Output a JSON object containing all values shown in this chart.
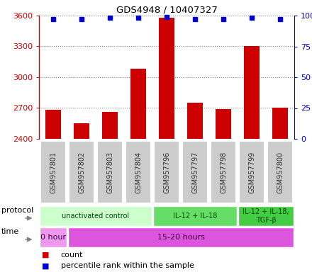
{
  "title": "GDS4948 / 10407327",
  "samples": [
    "GSM957801",
    "GSM957802",
    "GSM957803",
    "GSM957804",
    "GSM957796",
    "GSM957797",
    "GSM957798",
    "GSM957799",
    "GSM957800"
  ],
  "counts": [
    2680,
    2550,
    2665,
    3080,
    3580,
    2750,
    2690,
    3300,
    2700
  ],
  "percentile_ranks": [
    97,
    97,
    98,
    98,
    99,
    97,
    97,
    98,
    97
  ],
  "ylim_left": [
    2400,
    3600
  ],
  "yticks_left": [
    2400,
    2700,
    3000,
    3300,
    3600
  ],
  "ylim_right": [
    0,
    100
  ],
  "yticks_right": [
    0,
    25,
    50,
    75,
    100
  ],
  "bar_color": "#cc0000",
  "dot_color": "#0000cc",
  "left_axis_color": "#cc0000",
  "right_axis_color": "#0000cc",
  "protocol_labels": [
    {
      "text": "unactivated control",
      "start": 0,
      "end": 4,
      "color": "#ccffcc"
    },
    {
      "text": "IL-12 + IL-18",
      "start": 4,
      "end": 7,
      "color": "#66dd66"
    },
    {
      "text": "IL-12 + IL-18,\nTGF-β",
      "start": 7,
      "end": 9,
      "color": "#44cc44"
    }
  ],
  "time_labels": [
    {
      "text": "0 hour",
      "start": 0,
      "end": 1,
      "color": "#ee99ee"
    },
    {
      "text": "15-20 hours",
      "start": 1,
      "end": 9,
      "color": "#dd55dd"
    }
  ],
  "legend_count_label": "count",
  "legend_percentile_label": "percentile rank within the sample",
  "xlabel_protocol": "protocol",
  "xlabel_time": "time",
  "grid_color": "#888888",
  "sample_bg_color": "#cccccc",
  "sample_text_color": "#333333"
}
